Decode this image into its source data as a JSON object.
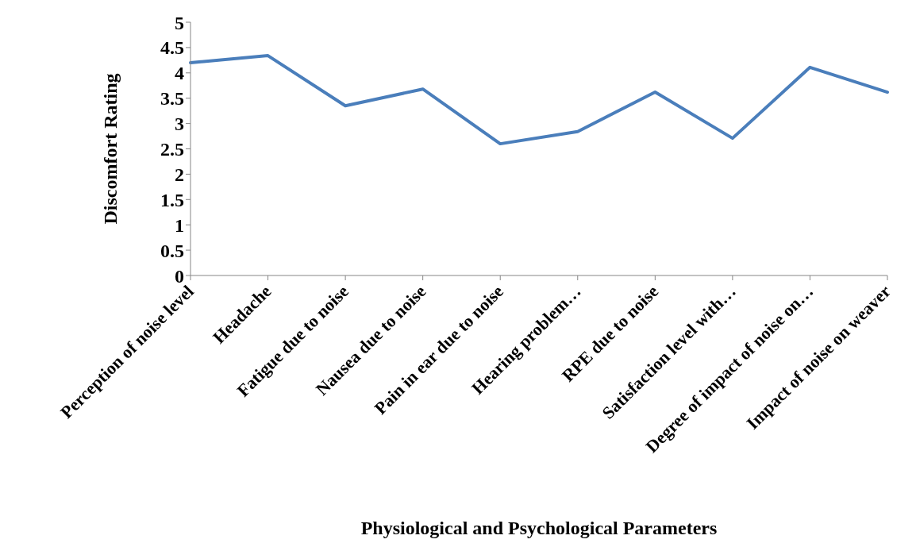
{
  "chart_data": {
    "type": "line",
    "xlabel": "Physiological and Psychological Parameters",
    "ylabel": "Discomfort Rating",
    "categories": [
      "Perception of noise level",
      "Headache",
      "Fatigue due to noise",
      "Nausea due to noise",
      "Pain in ear due to noise",
      "Hearing problem…",
      "RPE due to noise",
      "Satisfaction level with…",
      "Degree of impact of noise on…",
      "Impact of noise on weaver"
    ],
    "series": [
      {
        "color": "#4a7ebb",
        "values": [
          4.2,
          4.34,
          3.35,
          3.68,
          2.6,
          2.84,
          3.62,
          2.71,
          4.11,
          3.62
        ]
      }
    ],
    "ylim": [
      0,
      5
    ],
    "yticks": [
      0,
      0.5,
      1,
      1.5,
      2,
      2.5,
      3,
      3.5,
      4,
      4.5,
      5
    ],
    "grid": false,
    "legend": false,
    "marker": "none",
    "line_style": "solid"
  }
}
